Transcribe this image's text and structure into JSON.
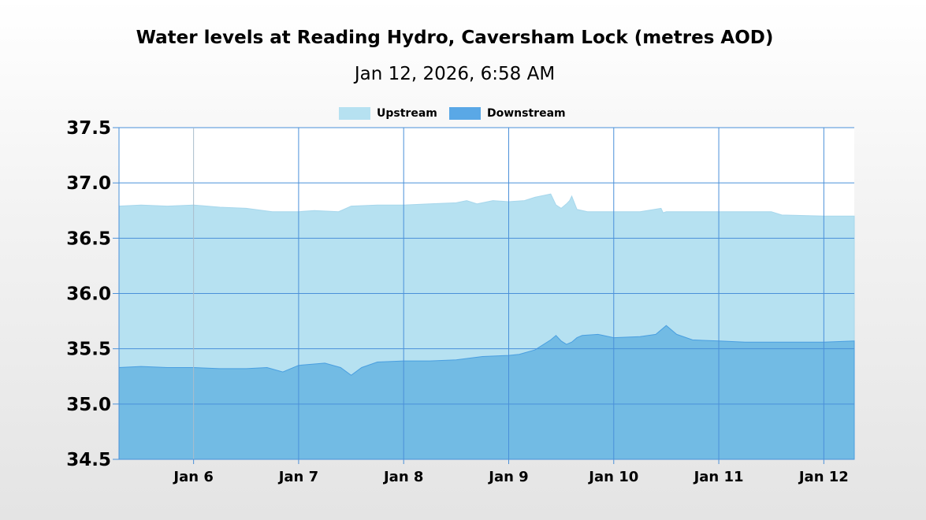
{
  "chart_data": {
    "type": "area",
    "title": "Water levels at Reading Hydro, Caversham Lock (metres AOD)",
    "subtitle": "Jan 12, 2026, 6:58 AM",
    "xlabel": "",
    "ylabel": "",
    "x_unit": "days since Jan 5, 2026 00:00",
    "xlim": [
      0.29,
      7.29
    ],
    "ylim": [
      34.5,
      37.5
    ],
    "yticks": [
      "37.5",
      "37.0",
      "36.5",
      "36.0",
      "35.5",
      "35.0",
      "34.5"
    ],
    "xticks": [
      {
        "label": "Jan 6",
        "x": 1
      },
      {
        "label": "Jan 7",
        "x": 2
      },
      {
        "label": "Jan 8",
        "x": 3
      },
      {
        "label": "Jan 9",
        "x": 4
      },
      {
        "label": "Jan 10",
        "x": 5
      },
      {
        "label": "Jan 11",
        "x": 6
      },
      {
        "label": "Jan 12",
        "x": 7
      }
    ],
    "grid": true,
    "legend_position": "top-center",
    "series": [
      {
        "name": "Upstream",
        "color": "#b6e1f1",
        "x": [
          0.29,
          0.5,
          0.75,
          1.0,
          1.25,
          1.5,
          1.75,
          2.0,
          2.15,
          2.38,
          2.5,
          2.75,
          3.0,
          3.25,
          3.5,
          3.6,
          3.7,
          3.85,
          4.0,
          4.15,
          4.25,
          4.4,
          4.45,
          4.5,
          4.55,
          4.58,
          4.6,
          4.65,
          4.7,
          4.75,
          5.0,
          5.25,
          5.45,
          5.47,
          5.5,
          5.75,
          6.0,
          6.25,
          6.5,
          6.6,
          7.0,
          7.29
        ],
        "values": [
          36.79,
          36.8,
          36.79,
          36.8,
          36.78,
          36.77,
          36.74,
          36.74,
          36.75,
          36.74,
          36.79,
          36.8,
          36.8,
          36.81,
          36.82,
          36.84,
          36.81,
          36.84,
          36.83,
          36.84,
          36.87,
          36.9,
          36.8,
          36.77,
          36.81,
          36.84,
          36.88,
          36.76,
          36.75,
          36.74,
          36.74,
          36.74,
          36.77,
          36.73,
          36.74,
          36.74,
          36.74,
          36.74,
          36.74,
          36.71,
          36.7,
          36.7
        ]
      },
      {
        "name": "Downstream",
        "color": "#72bbe4",
        "x": [
          0.29,
          0.5,
          0.75,
          1.0,
          1.25,
          1.5,
          1.7,
          1.85,
          2.0,
          2.25,
          2.4,
          2.5,
          2.6,
          2.75,
          3.0,
          3.25,
          3.5,
          3.75,
          4.0,
          4.1,
          4.25,
          4.4,
          4.45,
          4.5,
          4.55,
          4.6,
          4.65,
          4.7,
          4.85,
          5.0,
          5.25,
          5.4,
          5.5,
          5.6,
          5.75,
          6.0,
          6.25,
          6.5,
          6.75,
          7.0,
          7.29
        ],
        "values": [
          35.33,
          35.34,
          35.33,
          35.33,
          35.32,
          35.32,
          35.33,
          35.29,
          35.35,
          35.37,
          35.33,
          35.26,
          35.33,
          35.38,
          35.39,
          35.39,
          35.4,
          35.43,
          35.44,
          35.45,
          35.49,
          35.58,
          35.62,
          35.57,
          35.54,
          35.56,
          35.6,
          35.62,
          35.63,
          35.6,
          35.61,
          35.63,
          35.71,
          35.63,
          35.58,
          35.57,
          35.56,
          35.56,
          35.56,
          35.56,
          35.57
        ]
      }
    ]
  }
}
